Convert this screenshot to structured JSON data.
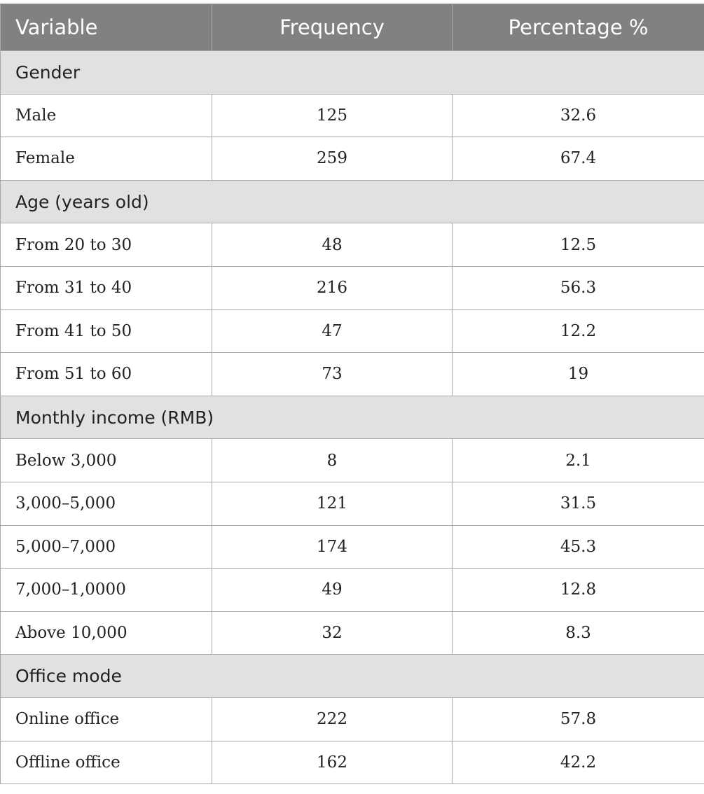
{
  "headers": [
    "Variable",
    "Frequency",
    "Percentage %"
  ],
  "sections": [
    {
      "title": "Gender",
      "rows": [
        {
          "label": "Male",
          "frequency": "125",
          "percentage": "32.6"
        },
        {
          "label": "Female",
          "frequency": "259",
          "percentage": "67.4"
        }
      ]
    },
    {
      "title": "Age (years old)",
      "rows": [
        {
          "label": "From 20 to 30",
          "frequency": "48",
          "percentage": "12.5"
        },
        {
          "label": "From 31 to 40",
          "frequency": "216",
          "percentage": "56.3"
        },
        {
          "label": "From 41 to 50",
          "frequency": "47",
          "percentage": "12.2"
        },
        {
          "label": "From 51 to 60",
          "frequency": "73",
          "percentage": "19"
        }
      ]
    },
    {
      "title": "Monthly income (RMB)",
      "rows": [
        {
          "label": "Below 3,000",
          "frequency": "8",
          "percentage": "2.1"
        },
        {
          "label": "3,000–5,000",
          "frequency": "121",
          "percentage": "31.5"
        },
        {
          "label": "5,000–7,000",
          "frequency": "174",
          "percentage": "45.3"
        },
        {
          "label": "7,000–1,0000",
          "frequency": "49",
          "percentage": "12.8"
        },
        {
          "label": "Above 10,000",
          "frequency": "32",
          "percentage": "8.3"
        }
      ]
    },
    {
      "title": "Office mode",
      "rows": [
        {
          "label": "Online office",
          "frequency": "222",
          "percentage": "57.8"
        },
        {
          "label": "Offline office",
          "frequency": "162",
          "percentage": "42.2"
        }
      ]
    }
  ],
  "colors": {
    "header_bg": "#7f8280",
    "section_bg": "#e1e1e2",
    "border": "#a8a8a8"
  }
}
